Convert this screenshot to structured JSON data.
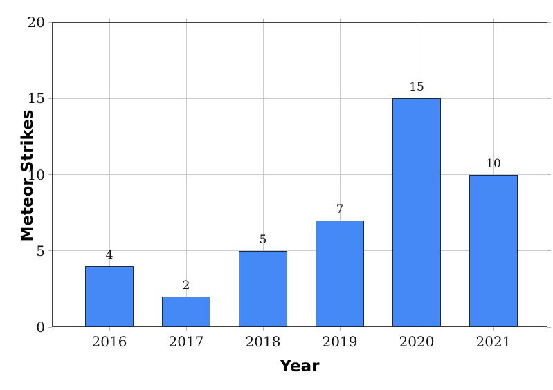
{
  "chart_data": {
    "type": "bar",
    "title": "",
    "categories": [
      "2016",
      "2017",
      "2018",
      "2019",
      "2020",
      "2021"
    ],
    "values": [
      4,
      2,
      5,
      7,
      15,
      10
    ],
    "bar_labels": [
      "4",
      "2",
      "5",
      "7",
      "15",
      "10"
    ],
    "xlabel": "Year",
    "ylabel": "Meteor Strikes",
    "ylim": [
      0,
      20
    ],
    "yticks": [
      0,
      5,
      10,
      15,
      20
    ],
    "grid": true,
    "legend": "none",
    "colors": {
      "bar_fill": "#4589f6",
      "bar_border": "#1e2a3a",
      "grid": "#cbcbcb",
      "frame": "#3f3f3f",
      "text": "#111111"
    }
  }
}
